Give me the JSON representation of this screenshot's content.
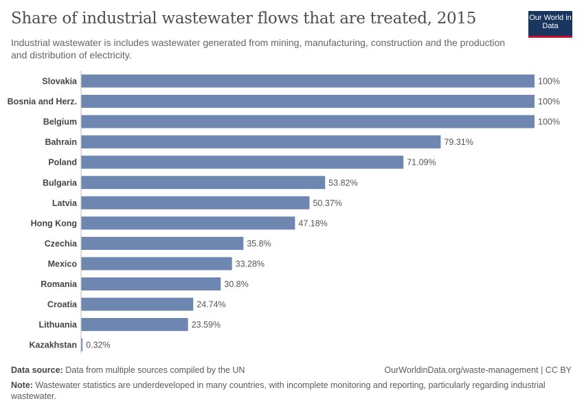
{
  "title": "Share of industrial wastewater flows that are treated, 2015",
  "subtitle": "Industrial wastewater is includes wastewater generated from mining, manufacturing, construction and the production and distribution of electricity.",
  "logo": "Our World in Data",
  "footer": {
    "source_label": "Data source:",
    "source": "Data from multiple sources compiled by the UN",
    "url": "OurWorldinData.org/waste-management | CC BY",
    "note_label": "Note:",
    "note": "Wastewater statistics are underdeveloped in many countries, with incomplete monitoring and reporting, particularly regarding industrial wastewater."
  },
  "colors": {
    "bar": "#6e87b0"
  },
  "chart_data": {
    "type": "bar",
    "orientation": "horizontal",
    "categories": [
      "Slovakia",
      "Bosnia and Herz.",
      "Belgium",
      "Bahrain",
      "Poland",
      "Bulgaria",
      "Latvia",
      "Hong Kong",
      "Czechia",
      "Mexico",
      "Romania",
      "Croatia",
      "Lithuania",
      "Kazakhstan"
    ],
    "values": [
      100,
      100,
      100,
      79.31,
      71.09,
      53.82,
      50.37,
      47.18,
      35.8,
      33.28,
      30.8,
      24.74,
      23.59,
      0.32
    ],
    "labels": [
      "100%",
      "100%",
      "100%",
      "79.31%",
      "71.09%",
      "53.82%",
      "50.37%",
      "47.18%",
      "35.8%",
      "33.28%",
      "30.8%",
      "24.74%",
      "23.59%",
      "0.32%"
    ],
    "xlim": [
      0,
      100
    ],
    "unit": "%"
  }
}
